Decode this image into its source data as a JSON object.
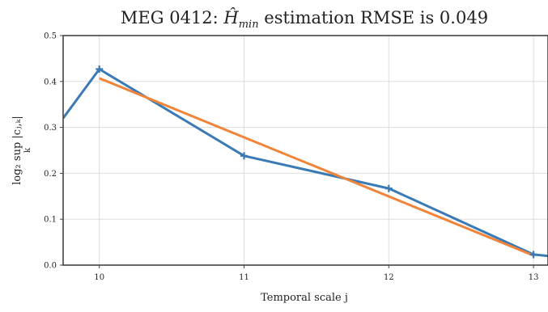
{
  "chart_data": {
    "type": "line",
    "title_parts": {
      "prefix": "MEG 0412: ",
      "symbol": "Ĥ",
      "subscript": "min",
      "suffix": " estimation RMSE is 0.049"
    },
    "xlabel": "Temporal scale j",
    "ylabel": "log₂ sup |cⱼ,ₖ|",
    "ylabel_sub": "k",
    "xlim": [
      9.75,
      13.1
    ],
    "ylim": [
      0,
      0.5
    ],
    "xticks": [
      10,
      11,
      12,
      13
    ],
    "yticks": [
      "0.0",
      "0.1",
      "0.2",
      "0.3",
      "0.4",
      "0.5"
    ],
    "grid": true,
    "series": [
      {
        "color": "#3a7ab5",
        "marker": "plus",
        "points": [
          [
            9.75,
            0.32
          ],
          [
            10,
            0.427
          ],
          [
            11,
            0.238
          ],
          [
            12,
            0.167
          ],
          [
            13,
            0.023
          ],
          [
            13.1,
            0.02
          ]
        ]
      },
      {
        "color": "#f0853a",
        "marker": "none",
        "points": [
          [
            10,
            0.407
          ],
          [
            13,
            0.021
          ]
        ]
      }
    ]
  }
}
